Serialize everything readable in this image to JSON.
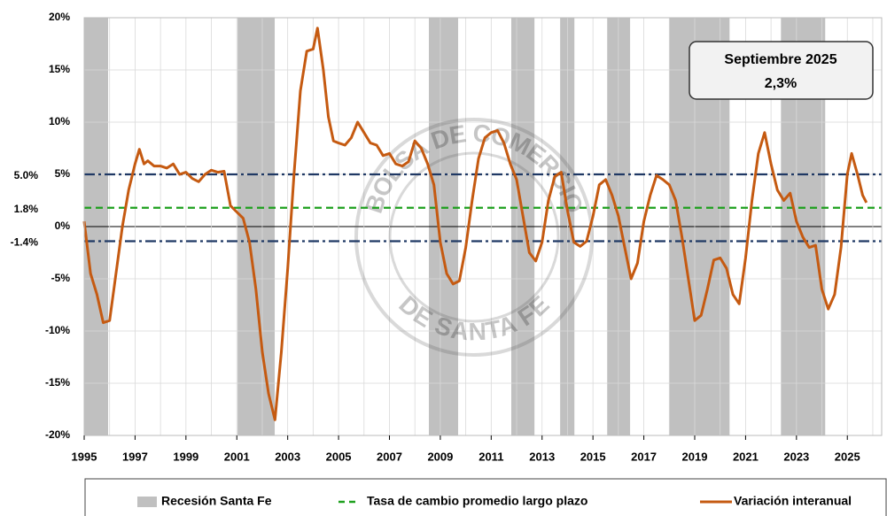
{
  "chart_data": {
    "type": "line",
    "x": [
      1995.0,
      1995.25,
      1995.5,
      1995.75,
      1996.0,
      1996.25,
      1996.5,
      1996.75,
      1997.0,
      1997.17,
      1997.35,
      1997.5,
      1997.75,
      1998.0,
      1998.25,
      1998.5,
      1998.75,
      1999.0,
      1999.25,
      1999.5,
      1999.75,
      2000.0,
      2000.25,
      2000.5,
      2000.75,
      2001.0,
      2001.25,
      2001.5,
      2001.75,
      2002.0,
      2002.25,
      2002.5,
      2002.75,
      2003.0,
      2003.25,
      2003.5,
      2003.75,
      2004.0,
      2004.17,
      2004.4,
      2004.6,
      2004.8,
      2005.0,
      2005.25,
      2005.5,
      2005.75,
      2006.0,
      2006.25,
      2006.5,
      2006.75,
      2007.0,
      2007.25,
      2007.5,
      2007.75,
      2008.0,
      2008.25,
      2008.5,
      2008.75,
      2009.0,
      2009.25,
      2009.5,
      2009.75,
      2010.0,
      2010.25,
      2010.5,
      2010.75,
      2011.0,
      2011.25,
      2011.5,
      2011.75,
      2012.0,
      2012.25,
      2012.5,
      2012.75,
      2013.0,
      2013.25,
      2013.5,
      2013.75,
      2014.0,
      2014.25,
      2014.5,
      2014.75,
      2015.0,
      2015.25,
      2015.5,
      2015.75,
      2016.0,
      2016.25,
      2016.5,
      2016.75,
      2017.0,
      2017.25,
      2017.5,
      2017.75,
      2018.0,
      2018.25,
      2018.5,
      2018.75,
      2019.0,
      2019.25,
      2019.5,
      2019.75,
      2020.0,
      2020.25,
      2020.5,
      2020.75,
      2021.0,
      2021.25,
      2021.5,
      2021.75,
      2022.0,
      2022.25,
      2022.5,
      2022.75,
      2023.0,
      2023.25,
      2023.5,
      2023.75,
      2024.0,
      2024.25,
      2024.5,
      2024.75,
      2025.0,
      2025.17,
      2025.4,
      2025.6,
      2025.75
    ],
    "series": [
      {
        "name": "Variación interanual",
        "color": "#c55a11",
        "values": [
          0.5,
          -4.5,
          -6.5,
          -9.2,
          -9.0,
          -4.5,
          0,
          3.5,
          6.0,
          7.4,
          6.0,
          6.3,
          5.8,
          5.8,
          5.6,
          6.0,
          5.0,
          5.2,
          4.6,
          4.3,
          5.0,
          5.4,
          5.2,
          5.3,
          2.0,
          1.4,
          0.8,
          -1.5,
          -6,
          -12,
          -16,
          -18.5,
          -12,
          -4,
          5,
          13,
          16.8,
          17,
          19,
          15,
          10.5,
          8.2,
          8.0,
          7.8,
          8.5,
          10.0,
          9.0,
          8.0,
          7.8,
          6.8,
          7.0,
          6.0,
          5.8,
          6.2,
          8.2,
          7.5,
          6.0,
          4.0,
          -1.5,
          -4.5,
          -5.5,
          -5.2,
          -2,
          2.5,
          6.5,
          8.5,
          9.0,
          9.2,
          8.0,
          6.0,
          4.5,
          1.0,
          -2.5,
          -3.3,
          -1.5,
          2.5,
          4.8,
          5.2,
          1.5,
          -1.5,
          -1.9,
          -1.4,
          1.0,
          4.0,
          4.5,
          3.0,
          1.0,
          -2.0,
          -5.0,
          -3.5,
          0.5,
          3.0,
          4.9,
          4.5,
          4.0,
          2.5,
          -1.0,
          -5.0,
          -9.0,
          -8.5,
          -6.0,
          -3.2,
          -3.0,
          -4.0,
          -6.5,
          -7.4,
          -3.0,
          2.5,
          7.0,
          9.0,
          6.0,
          3.5,
          2.5,
          3.2,
          0.5,
          -1.0,
          -2.0,
          -1.8,
          -6.0,
          -7.9,
          -6.5,
          -2.0,
          5.0,
          7.0,
          5.0,
          3.0,
          2.3
        ]
      }
    ],
    "recession_name": "Recesión Santa Fe",
    "recession_color": "#c0c0c0",
    "recessions": [
      [
        1995.0,
        1995.94
      ],
      [
        2001.03,
        2002.49
      ],
      [
        2008.55,
        2009.7
      ],
      [
        2011.79,
        2012.7
      ],
      [
        2013.71,
        2014.27
      ],
      [
        2015.56,
        2016.46
      ],
      [
        2018.0,
        2020.37
      ],
      [
        2022.39,
        2024.13
      ]
    ],
    "reference_lines": [
      {
        "value": 5.0,
        "label": "5.0%",
        "color": "#1f3864",
        "label_color": "#2f5597",
        "style": "dashdot"
      },
      {
        "value": 1.8,
        "label": "1.8%",
        "color": "#1ea01e",
        "label_color": "#548235",
        "style": "dashed",
        "name": "Tasa de cambio promedio largo plazo"
      },
      {
        "value": -1.4,
        "label": "-1.4%",
        "color": "#1f3864",
        "label_color": "#e00000",
        "style": "dashdot"
      }
    ],
    "annotation": {
      "title": "Septiembre 2025",
      "text": "2,3%"
    },
    "watermark": [
      "BOLSA DE COMERCIO",
      "DE SANTA FE"
    ],
    "xlim": [
      1995,
      2026.35
    ],
    "xticks": [
      1995,
      1997,
      1999,
      2001,
      2003,
      2005,
      2007,
      2009,
      2011,
      2013,
      2015,
      2017,
      2019,
      2021,
      2023,
      2025
    ],
    "xminor": [
      1996,
      1998,
      2000,
      2002,
      2004,
      2006,
      2008,
      2010,
      2012,
      2014,
      2016,
      2018,
      2020,
      2022,
      2024,
      2026
    ],
    "ylim": [
      -20,
      20
    ],
    "yticks": [
      {
        "value": 20,
        "label": "20%"
      },
      {
        "value": 15,
        "label": "15%"
      },
      {
        "value": 10,
        "label": "10%"
      },
      {
        "value": 5,
        "label": "5%"
      },
      {
        "value": 0,
        "label": "0%"
      },
      {
        "value": -5,
        "label": "-5%"
      },
      {
        "value": -10,
        "label": "-10%"
      },
      {
        "value": -15,
        "label": "-15%"
      },
      {
        "value": -20,
        "label": "-20%"
      }
    ],
    "ytick_color": "#e00000",
    "grid": true
  }
}
